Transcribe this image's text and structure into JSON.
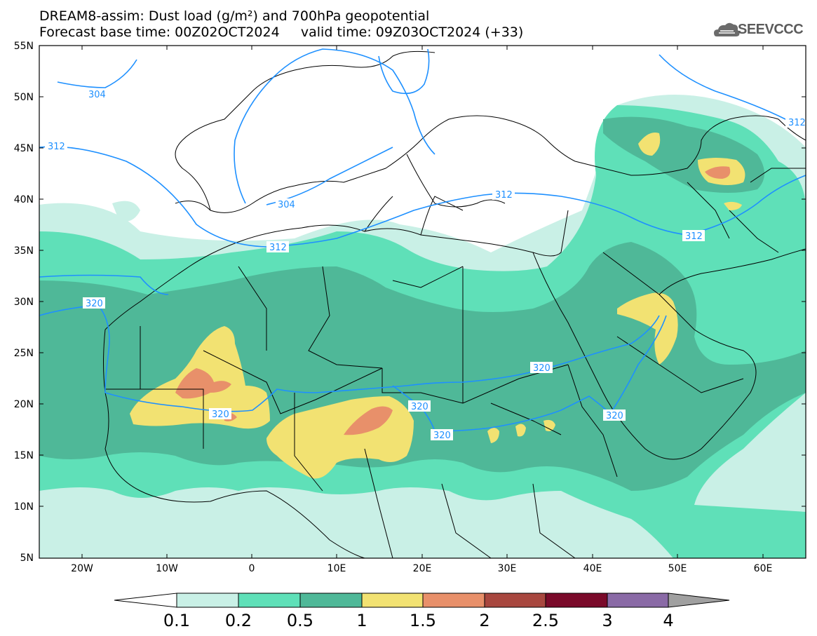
{
  "header": {
    "title_line1": "DREAM8-assim: Dust load (g/m²) and 700hPa geopotential",
    "title_line2": "Forecast base time: 00Z02OCT2024     valid time: 09Z03OCT2024 (+33)",
    "logo_text": "SEEVCCC"
  },
  "axes": {
    "lat_labels": [
      "55N",
      "50N",
      "45N",
      "40N",
      "35N",
      "30N",
      "25N",
      "20N",
      "15N",
      "10N",
      "5N"
    ],
    "lon_labels": [
      "20W",
      "10W",
      "0",
      "10E",
      "20E",
      "30E",
      "40E",
      "50E",
      "60E"
    ]
  },
  "contours": {
    "color": "#1e90ff",
    "labels": [
      "304",
      "304",
      "312",
      "312",
      "312",
      "312",
      "312",
      "320",
      "320",
      "320",
      "320",
      "320",
      "320"
    ]
  },
  "colorbar": {
    "ticks": [
      "0.1",
      "0.2",
      "0.5",
      "1",
      "1.5",
      "2",
      "2.5",
      "3",
      "4"
    ],
    "colors": [
      "#c9f0e6",
      "#5fe0b8",
      "#4fb898",
      "#f2e272",
      "#e8906a",
      "#a8473f",
      "#7a0a2a",
      "#8a6aa6",
      "#a0a0a0"
    ]
  },
  "colors": {
    "light": "#c9f0e6",
    "medium": "#5fe0b8",
    "dark": "#4fb898",
    "yellow": "#f2e272",
    "orange": "#e8906a",
    "coast": "#000000"
  }
}
